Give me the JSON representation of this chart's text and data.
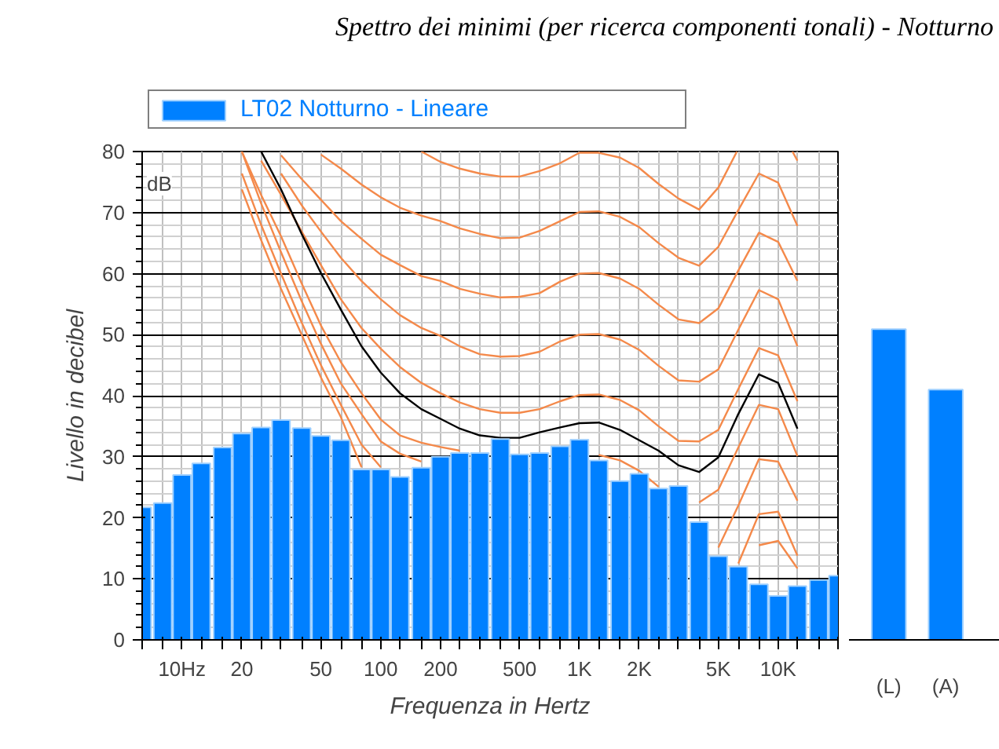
{
  "chart_data": [
    {
      "type": "bar",
      "title": "Spettro dei minimi (per ricerca componenti tonali) - Notturno",
      "xlabel": "Frequenza in Hertz",
      "ylabel": "Livello in decibel",
      "annotations": [
        "dB"
      ],
      "log": "x",
      "grid": true,
      "legend": "top",
      "x": [
        6.3,
        8,
        10,
        12.5,
        16,
        20,
        25,
        31.5,
        40,
        50,
        63,
        80,
        100,
        125,
        160,
        200,
        250,
        315,
        400,
        500,
        630,
        800,
        1000,
        1250,
        1600,
        2000,
        2500,
        3150,
        4000,
        5000,
        6300,
        8000,
        10000,
        12500,
        16000,
        20000
      ],
      "xlim": [
        6.3,
        20000
      ],
      "ylim": [
        0,
        80
      ],
      "xticks": [
        {
          "value": 6.3,
          "label": null
        },
        {
          "value": 8,
          "label": null
        },
        {
          "value": 10,
          "label": "10Hz"
        },
        {
          "value": 12.5,
          "label": null
        },
        {
          "value": 16,
          "label": null
        },
        20,
        {
          "value": 25,
          "label": null
        },
        {
          "value": 31.5,
          "label": null
        },
        {
          "value": 40,
          "label": null
        },
        50,
        {
          "value": 63,
          "label": null
        },
        {
          "value": 80,
          "label": null
        },
        100,
        {
          "value": 125,
          "label": null
        },
        {
          "value": 160,
          "label": null
        },
        200,
        {
          "value": 250,
          "label": null
        },
        {
          "value": 315,
          "label": null
        },
        {
          "value": 400,
          "label": null
        },
        500,
        {
          "value": 630,
          "label": null
        },
        {
          "value": 800,
          "label": null
        },
        {
          "value": 1000,
          "label": "1K"
        },
        {
          "value": 1250,
          "label": null
        },
        {
          "value": 1600,
          "label": null
        },
        {
          "value": 2000,
          "label": "2K"
        },
        {
          "value": 2500,
          "label": null
        },
        {
          "value": 3150,
          "label": null
        },
        {
          "value": 4000,
          "label": null
        },
        {
          "value": 5000,
          "label": "5K"
        },
        {
          "value": 6300,
          "label": null
        },
        {
          "value": 8000,
          "label": null
        },
        {
          "value": 10000,
          "label": "10K"
        },
        {
          "value": 12500,
          "label": null
        },
        {
          "value": 16000,
          "label": null
        },
        {
          "value": 20000,
          "label": null
        }
      ],
      "yticks": [
        0,
        10,
        20,
        30,
        40,
        50,
        60,
        70,
        80
      ],
      "series": [
        {
          "type": "line",
          "color": "#f4894a",
          "x": [
            160,
            200,
            250,
            315,
            400,
            500,
            630,
            800,
            1000,
            1250,
            1600,
            2000,
            2500,
            3150,
            4000,
            5000,
            6200,
            8000,
            11800,
            12500
          ],
          "values": [
            80.0,
            78.3,
            77.2,
            76.4,
            75.9,
            75.9,
            76.8,
            78.1,
            79.8,
            79.8,
            79.0,
            77.3,
            74.7,
            72.3,
            70.5,
            74.1,
            80.0,
            null,
            80.0,
            78.5
          ]
        },
        {
          "type": "line",
          "color": "#f4894a",
          "x": [
            50,
            63,
            80,
            100,
            125,
            160,
            200,
            250,
            315,
            400,
            500,
            630,
            800,
            1000,
            1250,
            1600,
            2000,
            2500,
            3150,
            4000,
            5000,
            6300,
            8000,
            10000,
            12500
          ],
          "values": [
            79.5,
            77.2,
            74.6,
            72.5,
            70.8,
            69.5,
            68.6,
            67.4,
            66.5,
            65.8,
            65.9,
            67.0,
            68.6,
            70.1,
            70.2,
            69.3,
            67.6,
            65.0,
            62.6,
            61.3,
            64.4,
            70.4,
            76.4,
            74.9,
            67.8
          ]
        },
        {
          "type": "line",
          "color": "#f4894a",
          "x": [
            31.5,
            40,
            50,
            63,
            80,
            100,
            125,
            160,
            200,
            250,
            315,
            400,
            500,
            630,
            800,
            1000,
            1250,
            1600,
            2000,
            2500,
            3150,
            4000,
            5000,
            6300,
            8000,
            10000,
            12500
          ],
          "values": [
            79.4,
            75.5,
            72.1,
            68.6,
            65.7,
            63.1,
            61.4,
            59.6,
            58.8,
            57.5,
            56.7,
            56.1,
            56.2,
            56.8,
            58.7,
            60.0,
            60.1,
            59.2,
            57.5,
            54.9,
            52.5,
            51.9,
            54.3,
            60.5,
            66.7,
            65.2,
            58.8
          ]
        },
        {
          "type": "line",
          "color": "#f4894a",
          "x": [
            31.5,
            40,
            50,
            63,
            80,
            100,
            125,
            160,
            200,
            250,
            315,
            400,
            500,
            630,
            800,
            1000,
            1250,
            1600,
            2000,
            2500,
            3150,
            4000,
            5000,
            6300,
            8000,
            10000,
            12500
          ],
          "values": [
            76.4,
            71.2,
            66.9,
            62.6,
            58.8,
            55.8,
            53.2,
            51.1,
            49.8,
            48.1,
            46.8,
            46.4,
            46.5,
            47.2,
            48.9,
            50.0,
            50.1,
            49.2,
            47.5,
            44.9,
            42.5,
            42.3,
            44.3,
            50.8,
            57.3,
            55.8,
            48.1
          ]
        },
        {
          "type": "line",
          "color": "#f4894a",
          "x": [
            25,
            31.5,
            40,
            50,
            63,
            80,
            100,
            125,
            160,
            200,
            250,
            315,
            400,
            500,
            630,
            800,
            1000,
            1250,
            1600,
            2000,
            2500,
            3150,
            4000,
            5000,
            6300,
            8000,
            10000,
            12500
          ],
          "values": [
            78.5,
            72.9,
            66.9,
            61.4,
            55.8,
            51.1,
            47.7,
            44.7,
            42.1,
            40.4,
            38.9,
            37.8,
            37.2,
            37.2,
            37.8,
            39.1,
            40.1,
            40.2,
            39.3,
            37.6,
            35.0,
            32.6,
            32.5,
            34.4,
            41.1,
            47.8,
            46.6,
            39.1
          ]
        },
        {
          "type": "line",
          "color": "#f4894a",
          "x": [
            20,
            25,
            31.5,
            40,
            50,
            63,
            80,
            100,
            125,
            160,
            200,
            250,
            315,
            400,
            500,
            630,
            800,
            1000,
            1250,
            1600,
            2000,
            2500,
            3150,
            4000,
            5000,
            6300,
            8000,
            10000,
            12500
          ],
          "values": [
            80.0,
            72.9,
            66.1,
            58.4,
            51.5,
            45.5,
            40.4,
            36.1,
            33.5,
            32.3,
            31.6,
            31.0,
            null,
            null,
            null,
            null,
            null,
            null,
            30.3,
            29.4,
            27.7,
            25.1,
            null,
            22.5,
            24.6,
            31.5,
            38.5,
            37.8,
            30.1
          ]
        },
        {
          "type": "line",
          "color": "#f4894a",
          "x": [
            20,
            25,
            31.5,
            40,
            50,
            63,
            80,
            100,
            125,
            160,
            200,
            250,
            315,
            400,
            500,
            630,
            800,
            1000,
            1250,
            1600,
            2000,
            2500,
            3150,
            4000,
            5000,
            6300,
            8000,
            10000,
            12500
          ],
          "values": [
            80.0,
            71.5,
            63.5,
            55.5,
            48.5,
            42.0,
            37.0,
            32.5,
            30.5,
            29.2,
            null,
            null,
            null,
            null,
            null,
            null,
            null,
            null,
            null,
            null,
            null,
            null,
            null,
            null,
            15.1,
            22.0,
            29.6,
            29.2,
            22.8
          ]
        },
        {
          "type": "line",
          "color": "#f4894a",
          "x": [
            20,
            25,
            31.5,
            40,
            50,
            63,
            80,
            100,
            125,
            160,
            200,
            250,
            315,
            400,
            500,
            630,
            800,
            1000,
            1250,
            1600,
            2000,
            2500,
            3150,
            4000,
            5000,
            6300,
            8000,
            10000,
            12500
          ],
          "values": [
            76.4,
            68.0,
            60.0,
            52.0,
            45.0,
            38.5,
            32.0,
            28.3,
            null,
            null,
            null,
            null,
            null,
            null,
            null,
            null,
            null,
            null,
            null,
            null,
            null,
            null,
            null,
            null,
            null,
            12.5,
            20.6,
            21.0,
            13.8
          ]
        },
        {
          "type": "line",
          "color": "#f4894a",
          "x": [
            20,
            25,
            31.5,
            40,
            50,
            63,
            80,
            100,
            125,
            160,
            200,
            250,
            315,
            400,
            500,
            630,
            800,
            1000,
            1250,
            1600,
            2000,
            2500,
            3150,
            4000,
            5000,
            6300,
            8000,
            10000,
            12500
          ],
          "values": [
            73.8,
            65.5,
            57.5,
            50.0,
            43.0,
            36.5,
            28.3,
            null,
            null,
            null,
            null,
            null,
            null,
            null,
            null,
            null,
            null,
            null,
            null,
            null,
            null,
            null,
            null,
            null,
            null,
            null,
            15.5,
            16.2,
            11.7
          ]
        },
        {
          "type": "line",
          "color": "#000000",
          "x": [
            25,
            31.5,
            40,
            50,
            63,
            80,
            100,
            125,
            160,
            200,
            250,
            315,
            400,
            500,
            630,
            800,
            1000,
            1250,
            1600,
            2000,
            2500,
            3150,
            4000,
            5000,
            6300,
            8000,
            10000,
            12500
          ],
          "values": [
            80.0,
            73.8,
            66.5,
            60.1,
            54.1,
            48.1,
            43.8,
            40.4,
            37.8,
            36.2,
            34.6,
            33.5,
            33.1,
            33.1,
            34.0,
            34.8,
            35.5,
            35.6,
            34.4,
            32.7,
            31.0,
            28.6,
            27.5,
            29.9,
            37.0,
            43.5,
            42.1,
            34.6
          ]
        },
        {
          "type": "bar",
          "name": "LT02 Notturno - Lineare",
          "color": "#0080ff",
          "values": [
            21.7,
            22.4,
            27.0,
            28.9,
            31.5,
            33.8,
            34.8,
            36.0,
            34.7,
            33.4,
            32.7,
            27.9,
            27.9,
            26.7,
            28.2,
            30.0,
            30.6,
            30.6,
            32.9,
            30.4,
            30.6,
            31.7,
            32.8,
            29.4,
            26.0,
            27.2,
            24.8,
            25.2,
            19.3,
            13.7,
            12.0,
            9.1,
            7.2,
            8.8,
            9.8,
            10.5
          ]
        }
      ]
    },
    {
      "type": "bar",
      "categories": [
        "(L)",
        "(A)"
      ],
      "values": [
        50.9,
        41.0
      ],
      "color": "#0080ff",
      "ylim": [
        0,
        80
      ],
      "tick_labels": "x"
    }
  ]
}
